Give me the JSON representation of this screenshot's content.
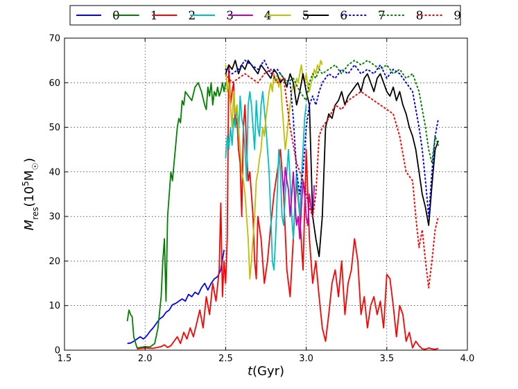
{
  "chart_data": {
    "type": "line",
    "xlabel": "t(Gyr)",
    "ylabel": "M_res(10^5 M_sun)",
    "xlim": [
      1.5,
      4.0
    ],
    "ylim": [
      0,
      70
    ],
    "xticks": [
      1.5,
      2.0,
      2.5,
      3.0,
      3.5,
      4.0
    ],
    "xtick_labels": [
      "1.5",
      "2.0",
      "2.5",
      "3.0",
      "3.5",
      "4.0"
    ],
    "yticks": [
      0,
      10,
      20,
      30,
      40,
      50,
      60,
      70
    ],
    "ytick_labels": [
      "0",
      "10",
      "20",
      "30",
      "40",
      "50",
      "60",
      "70"
    ],
    "grid": true,
    "legend_position": "top",
    "series": [
      {
        "name": "0",
        "color": "#0000ff",
        "style": "solid",
        "x": [
          1.89,
          1.91,
          1.93,
          1.95,
          1.97,
          1.99,
          2.01,
          2.03,
          2.05,
          2.07,
          2.09,
          2.11,
          2.13,
          2.15,
          2.17,
          2.19,
          2.21,
          2.23,
          2.25,
          2.27,
          2.29,
          2.31,
          2.33,
          2.35,
          2.37,
          2.39,
          2.41,
          2.43,
          2.45,
          2.47,
          2.49
        ],
        "y": [
          1.5,
          1.6,
          2.0,
          2.5,
          3.0,
          2.5,
          3.2,
          4.2,
          5.0,
          6.0,
          7.0,
          7.5,
          8.5,
          9.0,
          10.2,
          10.5,
          11.0,
          11.5,
          11.0,
          12.5,
          12.0,
          13.0,
          12.5,
          14.0,
          15.0,
          13.5,
          15.0,
          16.0,
          16.5,
          18.0,
          22.5
        ]
      },
      {
        "name": "1",
        "color": "#008000",
        "style": "solid",
        "x": [
          1.89,
          1.9,
          1.91,
          1.92,
          1.93,
          1.95,
          1.97,
          2.0,
          2.03,
          2.06,
          2.08,
          2.1,
          2.11,
          2.12,
          2.13,
          2.14,
          2.15,
          2.16,
          2.17,
          2.18,
          2.19,
          2.2,
          2.21,
          2.22,
          2.23,
          2.24,
          2.25,
          2.27,
          2.29,
          2.31,
          2.33,
          2.35,
          2.37,
          2.38,
          2.39,
          2.4,
          2.41,
          2.42,
          2.43,
          2.44,
          2.45,
          2.46,
          2.47,
          2.48,
          2.49,
          2.5
        ],
        "y": [
          6.5,
          9.0,
          8.0,
          7.5,
          3.0,
          0.5,
          0.6,
          0.8,
          0.7,
          1.5,
          5.0,
          12.0,
          20.0,
          25.0,
          11.0,
          30.0,
          35.0,
          40.0,
          38.0,
          42.0,
          46.0,
          50.0,
          52.0,
          51.0,
          56.0,
          55.0,
          58.0,
          57.0,
          56.0,
          59.0,
          60.0,
          58.0,
          55.0,
          54.0,
          59.0,
          57.0,
          60.0,
          55.0,
          58.0,
          57.0,
          59.0,
          57.0,
          58.0,
          60.0,
          58.0,
          60.0
        ]
      },
      {
        "name": "2",
        "color": "#ff0000",
        "style": "solid",
        "x": [
          1.95,
          2.0,
          2.05,
          2.1,
          2.12,
          2.14,
          2.16,
          2.18,
          2.2,
          2.22,
          2.24,
          2.26,
          2.28,
          2.3,
          2.32,
          2.34,
          2.36,
          2.38,
          2.4,
          2.42,
          2.44,
          2.46,
          2.47,
          2.48,
          2.49,
          2.5,
          2.51,
          2.52,
          2.53,
          2.54,
          2.55,
          2.56,
          2.57,
          2.58,
          2.59,
          2.6,
          2.61,
          2.62,
          2.63,
          2.64,
          2.65,
          2.66,
          2.67,
          2.68,
          2.69,
          2.7,
          2.72,
          2.74,
          2.76,
          2.78,
          2.8,
          2.82,
          2.84,
          2.86,
          2.88,
          2.9,
          2.92,
          2.94,
          2.96,
          2.98,
          3.0,
          3.02,
          3.04,
          3.06,
          3.08,
          3.1,
          3.12,
          3.14,
          3.16,
          3.18,
          3.2,
          3.22,
          3.24,
          3.26,
          3.28,
          3.3,
          3.32,
          3.34,
          3.36,
          3.38,
          3.4,
          3.42,
          3.44,
          3.46,
          3.48,
          3.5,
          3.52,
          3.54,
          3.56,
          3.58,
          3.6,
          3.62,
          3.64,
          3.66,
          3.68,
          3.7,
          3.72,
          3.74,
          3.76,
          3.78,
          3.8,
          3.82
        ],
        "y": [
          0.3,
          0.5,
          0.4,
          0.8,
          1.2,
          0.6,
          1.0,
          2.0,
          3.0,
          1.5,
          4.0,
          2.5,
          5.0,
          3.0,
          6.0,
          9.0,
          5.0,
          12.0,
          8.0,
          15.0,
          11.0,
          18.0,
          33.0,
          12.0,
          20.0,
          15.0,
          25.0,
          64.0,
          55.0,
          58.0,
          60.0,
          50.0,
          52.0,
          45.0,
          42.0,
          30.0,
          50.0,
          55.0,
          45.0,
          38.0,
          40.0,
          35.0,
          30.0,
          20.0,
          16.0,
          30.0,
          25.0,
          15.0,
          20.0,
          28.0,
          35.0,
          40.0,
          45.0,
          35.0,
          18.0,
          12.0,
          25.0,
          38.0,
          30.0,
          18.0,
          45.0,
          25.0,
          15.0,
          20.0,
          12.0,
          5.0,
          2.0,
          8.0,
          15.0,
          18.0,
          12.0,
          20.0,
          8.0,
          15.0,
          18.0,
          25.0,
          20.0,
          8.0,
          12.0,
          5.0,
          10.0,
          12.0,
          8.0,
          11.0,
          5.0,
          17.0,
          16.0,
          10.0,
          3.0,
          10.0,
          8.0,
          2.0,
          4.0,
          0.5,
          2.0,
          1.0,
          0.3,
          0.2,
          0.5,
          0.3,
          0.2,
          0.4
        ]
      },
      {
        "name": "3",
        "color": "#00bfbf",
        "style": "solid",
        "x": [
          2.5,
          2.51,
          2.52,
          2.53,
          2.54,
          2.55,
          2.56,
          2.57,
          2.58,
          2.59,
          2.6,
          2.61,
          2.62,
          2.63,
          2.64,
          2.65,
          2.66,
          2.67,
          2.68,
          2.69,
          2.7,
          2.71,
          2.72,
          2.73,
          2.74,
          2.75,
          2.76,
          2.77,
          2.78,
          2.79,
          2.8,
          2.81,
          2.82,
          2.83,
          2.84,
          2.85,
          2.86,
          2.87,
          2.88,
          2.89,
          2.9,
          2.91,
          2.92,
          2.93,
          2.94,
          2.95,
          2.96,
          2.97,
          2.98,
          2.99,
          3.0
        ],
        "y": [
          43.0,
          48.0,
          45.0,
          50.0,
          46.0,
          52.0,
          50.0,
          55.0,
          48.0,
          57.0,
          52.0,
          50.0,
          45.0,
          38.0,
          55.0,
          58.0,
          55.0,
          50.0,
          45.0,
          56.0,
          50.0,
          48.0,
          55.0,
          58.0,
          54.0,
          50.0,
          45.0,
          40.0,
          30.0,
          20.0,
          18.0,
          25.0,
          35.0,
          45.0,
          40.0,
          30.0,
          28.0,
          35.0,
          40.0,
          45.0,
          38.0,
          30.0,
          25.0,
          33.0,
          40.0,
          35.0,
          30.0,
          38.0,
          45.0,
          52.0,
          55.0
        ]
      },
      {
        "name": "4",
        "color": "#bf00bf",
        "style": "solid",
        "x": [
          2.85,
          2.86,
          2.87,
          2.88,
          2.89,
          2.9,
          2.91,
          2.92,
          2.93,
          2.94,
          2.95,
          2.96,
          2.97,
          2.98,
          2.99,
          3.0,
          3.01,
          3.02,
          3.03,
          3.04,
          3.05
        ],
        "y": [
          40.0,
          35.0,
          41.0,
          38.0,
          36.0,
          30.0,
          35.0,
          40.0,
          33.0,
          28.0,
          30.0,
          25.0,
          32.0,
          38.0,
          35.0,
          30.0,
          28.0,
          35.0,
          32.0,
          30.0,
          37.0
        ]
      },
      {
        "name": "5",
        "color": "#bfbf00",
        "style": "solid",
        "x": [
          2.5,
          2.51,
          2.52,
          2.53,
          2.54,
          2.55,
          2.56,
          2.57,
          2.58,
          2.59,
          2.6,
          2.61,
          2.62,
          2.63,
          2.64,
          2.65,
          2.66,
          2.67,
          2.68,
          2.69,
          2.7,
          2.71,
          2.72,
          2.73,
          2.74,
          2.75,
          2.76,
          2.77,
          2.78,
          2.79,
          2.8,
          2.81,
          2.82,
          2.83,
          2.84,
          2.85,
          2.86,
          2.87,
          2.88,
          2.89,
          2.9,
          2.91,
          2.92,
          2.93,
          2.94,
          2.95,
          2.96,
          2.97,
          2.98,
          2.99,
          3.0,
          3.01,
          3.02,
          3.03,
          3.04,
          3.05,
          3.06,
          3.07,
          3.08,
          3.09,
          3.1
        ],
        "y": [
          64.0,
          58.0,
          60.0,
          55.0,
          50.0,
          58.0,
          53.0,
          55.0,
          50.0,
          45.0,
          40.0,
          38.0,
          35.0,
          30.0,
          25.0,
          16.0,
          20.0,
          25.0,
          30.0,
          38.0,
          40.0,
          43.0,
          45.0,
          50.0,
          48.0,
          52.0,
          55.0,
          58.0,
          60.0,
          58.0,
          62.0,
          60.0,
          61.0,
          59.0,
          61.0,
          55.0,
          50.0,
          45.0,
          48.0,
          52.0,
          55.0,
          58.0,
          60.0,
          58.0,
          61.0,
          60.0,
          62.0,
          64.0,
          61.0,
          60.0,
          62.0,
          59.0,
          58.0,
          60.0,
          61.0,
          63.0,
          62.0,
          64.0,
          63.0,
          65.0,
          64.0
        ]
      },
      {
        "name": "6",
        "color": "#000000",
        "style": "solid",
        "x": [
          2.5,
          2.52,
          2.54,
          2.56,
          2.58,
          2.6,
          2.62,
          2.64,
          2.66,
          2.68,
          2.7,
          2.72,
          2.74,
          2.76,
          2.78,
          2.8,
          2.82,
          2.84,
          2.86,
          2.88,
          2.9,
          2.92,
          2.94,
          2.96,
          2.98,
          3.0,
          3.02,
          3.04,
          3.06,
          3.08,
          3.1,
          3.12,
          3.14,
          3.16,
          3.18,
          3.2,
          3.22,
          3.24,
          3.26,
          3.28,
          3.3,
          3.32,
          3.34,
          3.36,
          3.38,
          3.4,
          3.42,
          3.44,
          3.46,
          3.48,
          3.5,
          3.52,
          3.54,
          3.56,
          3.58,
          3.6,
          3.62,
          3.64,
          3.66,
          3.68,
          3.7,
          3.72,
          3.74,
          3.76,
          3.78,
          3.8,
          3.82
        ],
        "y": [
          62.0,
          64.0,
          63.0,
          65.0,
          62.0,
          64.0,
          63.0,
          65.0,
          64.0,
          63.0,
          62.0,
          64.0,
          63.0,
          62.0,
          61.0,
          63.0,
          62.0,
          60.0,
          61.0,
          59.0,
          62.0,
          60.0,
          55.0,
          58.0,
          62.0,
          58.0,
          55.0,
          30.0,
          25.0,
          21.0,
          30.0,
          50.0,
          53.0,
          52.0,
          55.0,
          56.0,
          58.0,
          55.0,
          57.0,
          58.0,
          59.0,
          60.0,
          58.0,
          61.0,
          62.0,
          60.0,
          58.0,
          61.0,
          62.0,
          60.0,
          58.0,
          57.0,
          59.0,
          56.0,
          58.0,
          55.0,
          53.0,
          50.0,
          48.0,
          45.0,
          40.0,
          35.0,
          32.0,
          28.0,
          37.0,
          45.0,
          47.0
        ]
      },
      {
        "name": "7",
        "color": "#0000ff",
        "style": "dotted",
        "x": [
          2.5,
          2.54,
          2.58,
          2.62,
          2.66,
          2.7,
          2.74,
          2.78,
          2.82,
          2.86,
          2.9,
          2.92,
          2.94,
          2.96,
          2.98,
          3.0,
          3.02,
          3.04,
          3.06,
          3.08,
          3.1,
          3.14,
          3.18,
          3.22,
          3.26,
          3.3,
          3.34,
          3.38,
          3.42,
          3.46,
          3.5,
          3.54,
          3.58,
          3.62,
          3.66,
          3.7,
          3.72,
          3.74,
          3.76,
          3.78,
          3.8,
          3.82
        ],
        "y": [
          63.0,
          62.0,
          63.0,
          65.0,
          64.0,
          63.0,
          65.0,
          62.0,
          63.0,
          61.0,
          60.0,
          52.0,
          40.0,
          35.0,
          40.0,
          50.0,
          55.0,
          57.0,
          55.0,
          58.0,
          60.0,
          62.0,
          61.0,
          63.0,
          62.0,
          64.0,
          62.0,
          63.0,
          62.0,
          64.0,
          61.0,
          63.0,
          62.0,
          60.0,
          58.0,
          50.0,
          45.0,
          38.0,
          30.0,
          40.0,
          48.0,
          52.0
        ]
      },
      {
        "name": "8",
        "color": "#008000",
        "style": "dotted",
        "x": [
          2.8,
          2.84,
          2.88,
          2.92,
          2.96,
          3.0,
          3.02,
          3.04,
          3.06,
          3.08,
          3.1,
          3.14,
          3.18,
          3.22,
          3.26,
          3.3,
          3.34,
          3.38,
          3.42,
          3.46,
          3.5,
          3.54,
          3.58,
          3.62,
          3.66,
          3.7,
          3.72,
          3.74,
          3.76,
          3.78,
          3.8,
          3.82
        ],
        "y": [
          61.0,
          62.0,
          60.0,
          61.0,
          58.0,
          56.0,
          60.0,
          62.0,
          61.0,
          63.0,
          62.0,
          63.0,
          64.0,
          62.0,
          64.0,
          65.0,
          64.0,
          65.0,
          64.0,
          63.0,
          64.0,
          62.0,
          63.0,
          61.0,
          62.0,
          58.0,
          54.0,
          50.0,
          45.0,
          42.0,
          48.0,
          46.0
        ]
      },
      {
        "name": "9",
        "color": "#ff0000",
        "style": "dotted",
        "x": [
          2.5,
          2.54,
          2.58,
          2.62,
          2.66,
          2.7,
          2.74,
          2.78,
          2.82,
          2.86,
          2.9,
          2.94,
          2.98,
          3.0,
          3.02,
          3.04,
          3.06,
          3.08,
          3.1,
          3.14,
          3.18,
          3.22,
          3.26,
          3.3,
          3.34,
          3.38,
          3.42,
          3.46,
          3.5,
          3.54,
          3.58,
          3.62,
          3.66,
          3.68,
          3.7,
          3.72,
          3.74,
          3.76,
          3.78,
          3.8,
          3.82
        ],
        "y": [
          62.0,
          60.0,
          61.0,
          62.0,
          61.0,
          60.0,
          62.0,
          63.0,
          60.0,
          61.0,
          50.0,
          42.0,
          38.0,
          35.0,
          32.0,
          30.0,
          35.0,
          48.0,
          50.0,
          52.0,
          55.0,
          54.0,
          56.0,
          57.0,
          58.0,
          57.0,
          56.0,
          55.0,
          54.0,
          53.0,
          48.0,
          40.0,
          38.0,
          30.0,
          23.0,
          27.0,
          20.0,
          14.0,
          20.0,
          27.0,
          30.0
        ]
      }
    ]
  }
}
